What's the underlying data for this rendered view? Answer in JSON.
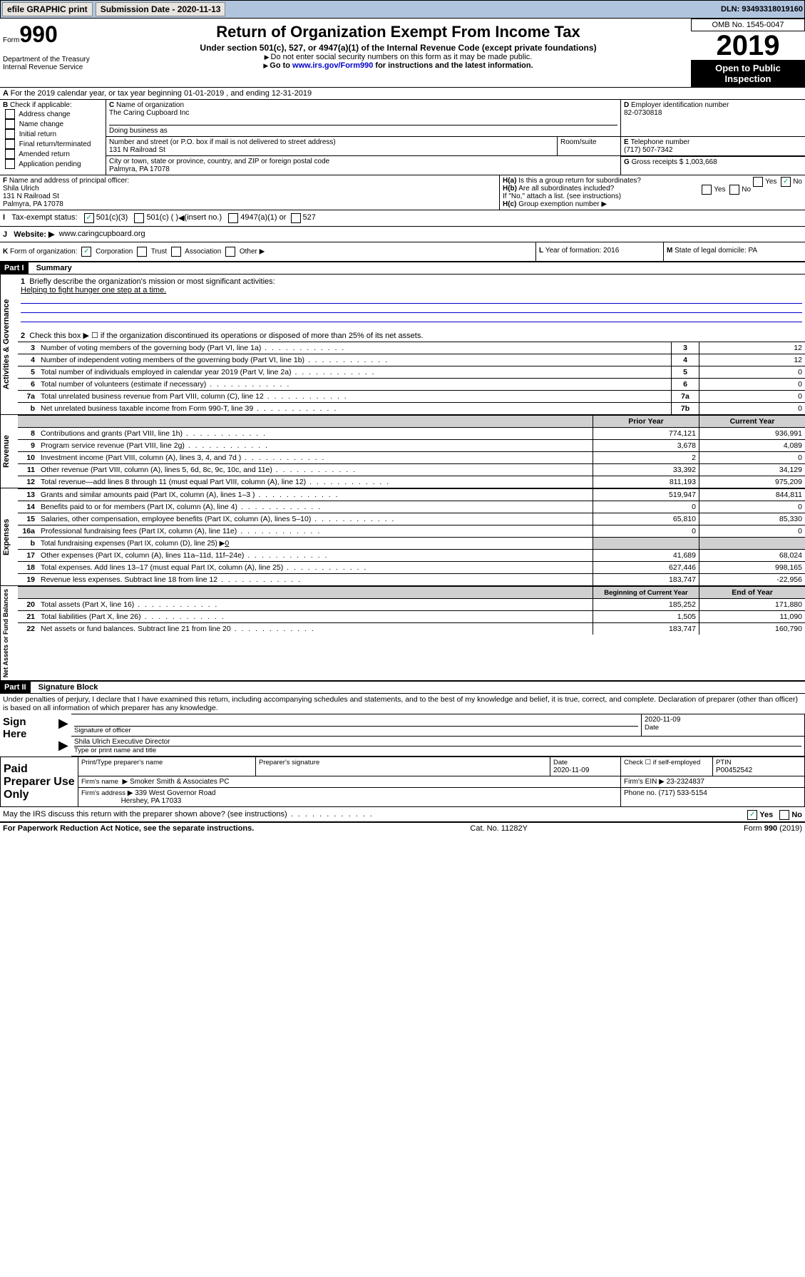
{
  "topbar": {
    "efile": "efile GRAPHIC print",
    "subdate_label": "Submission Date - 2020-11-13",
    "dln": "DLN: 93493318019160"
  },
  "hdr": {
    "form_word": "Form",
    "form_num": "990",
    "dept": "Department of the Treasury",
    "irs": "Internal Revenue Service",
    "title": "Return of Organization Exempt From Income Tax",
    "sub": "Under section 501(c), 527, or 4947(a)(1) of the Internal Revenue Code (except private foundations)",
    "note1": "Do not enter social security numbers on this form as it may be made public.",
    "note2_pre": "Go to ",
    "note2_link": "www.irs.gov/Form990",
    "note2_post": " for instructions and the latest information.",
    "omb": "OMB No. 1545-0047",
    "year": "2019",
    "inspect": "Open to Public Inspection"
  },
  "A": {
    "text": "For the 2019 calendar year, or tax year beginning 01-01-2019    , and ending 12-31-2019"
  },
  "B": {
    "label": "Check if applicable:",
    "opts": [
      "Address change",
      "Name change",
      "Initial return",
      "Final return/terminated",
      "Amended return",
      "Application pending"
    ]
  },
  "C": {
    "name_label": "Name of organization",
    "name": "The Caring Cupboard Inc",
    "dba_label": "Doing business as",
    "addr_label": "Number and street (or P.O. box if mail is not delivered to street address)",
    "room": "Room/suite",
    "addr": "131 N Railroad St",
    "city_label": "City or town, state or province, country, and ZIP or foreign postal code",
    "city": "Palmyra, PA  17078"
  },
  "D": {
    "label": "Employer identification number",
    "val": "82-0730818"
  },
  "E": {
    "label": "Telephone number",
    "val": "(717) 507-7342"
  },
  "G": {
    "label": "Gross receipts $ 1,003,668"
  },
  "F": {
    "label": "Name and address of principal officer:",
    "name": "Shila Ulrich",
    "addr1": "131 N Railroad St",
    "addr2": "Palmyra, PA  17078"
  },
  "H": {
    "a": "Is this a group return for subordinates?",
    "a_yes": "Yes",
    "a_no": "No",
    "b": "Are all subordinates included?",
    "c_note": "If \"No,\" attach a list. (see instructions)",
    "c": "Group exemption number"
  },
  "I": {
    "label": "Tax-exempt status:",
    "o1": "501(c)(3)",
    "o2": "501(c) (  )",
    "o2b": "(insert no.)",
    "o3": "4947(a)(1) or",
    "o4": "527"
  },
  "J": {
    "label": "Website:",
    "val": "www.caringcupboard.org"
  },
  "K": {
    "label": "Form of organization:",
    "o1": "Corporation",
    "o2": "Trust",
    "o3": "Association",
    "o4": "Other"
  },
  "L": {
    "label": "Year of formation: 2016"
  },
  "M": {
    "label": "State of legal domicile: PA"
  },
  "part1": {
    "hdr": "Part I",
    "title": "Summary"
  },
  "s1": {
    "q": "Briefly describe the organization's mission or most significant activities:",
    "a": "Helping to fight hunger one step at a time."
  },
  "s2": "Check this box ▶ ☐  if the organization discontinued its operations or disposed of more than 25% of its net assets.",
  "summary": [
    {
      "n": "3",
      "t": "Number of voting members of the governing body (Part VI, line 1a)",
      "b": "3",
      "v": "12"
    },
    {
      "n": "4",
      "t": "Number of independent voting members of the governing body (Part VI, line 1b)",
      "b": "4",
      "v": "12"
    },
    {
      "n": "5",
      "t": "Total number of individuals employed in calendar year 2019 (Part V, line 2a)",
      "b": "5",
      "v": "0"
    },
    {
      "n": "6",
      "t": "Total number of volunteers (estimate if necessary)",
      "b": "6",
      "v": "0"
    },
    {
      "n": "7a",
      "t": "Total unrelated business revenue from Part VIII, column (C), line 12",
      "b": "7a",
      "v": "0"
    },
    {
      "n": "b",
      "t": "Net unrelated business taxable income from Form 990-T, line 39",
      "b": "7b",
      "v": "0"
    }
  ],
  "cols": {
    "prior": "Prior Year",
    "curr": "Current Year",
    "beg": "Beginning of Current Year",
    "end": "End of Year"
  },
  "revenue": [
    {
      "n": "8",
      "t": "Contributions and grants (Part VIII, line 1h)",
      "p": "774,121",
      "c": "936,991"
    },
    {
      "n": "9",
      "t": "Program service revenue (Part VIII, line 2g)",
      "p": "3,678",
      "c": "4,089"
    },
    {
      "n": "10",
      "t": "Investment income (Part VIII, column (A), lines 3, 4, and 7d )",
      "p": "2",
      "c": "0"
    },
    {
      "n": "11",
      "t": "Other revenue (Part VIII, column (A), lines 5, 6d, 8c, 9c, 10c, and 11e)",
      "p": "33,392",
      "c": "34,129"
    },
    {
      "n": "12",
      "t": "Total revenue—add lines 8 through 11 (must equal Part VIII, column (A), line 12)",
      "p": "811,193",
      "c": "975,209"
    }
  ],
  "expenses": [
    {
      "n": "13",
      "t": "Grants and similar amounts paid (Part IX, column (A), lines 1–3 )",
      "p": "519,947",
      "c": "844,811"
    },
    {
      "n": "14",
      "t": "Benefits paid to or for members (Part IX, column (A), line 4)",
      "p": "0",
      "c": "0"
    },
    {
      "n": "15",
      "t": "Salaries, other compensation, employee benefits (Part IX, column (A), lines 5–10)",
      "p": "65,810",
      "c": "85,330"
    },
    {
      "n": "16a",
      "t": "Professional fundraising fees (Part IX, column (A), line 11e)",
      "p": "0",
      "c": "0"
    }
  ],
  "line16b": {
    "n": "b",
    "t": "Total fundraising expenses (Part IX, column (D), line 25) ▶",
    "v": "0"
  },
  "expenses2": [
    {
      "n": "17",
      "t": "Other expenses (Part IX, column (A), lines 11a–11d, 11f–24e)",
      "p": "41,689",
      "c": "68,024"
    },
    {
      "n": "18",
      "t": "Total expenses. Add lines 13–17 (must equal Part IX, column (A), line 25)",
      "p": "627,446",
      "c": "998,165"
    },
    {
      "n": "19",
      "t": "Revenue less expenses. Subtract line 18 from line 12",
      "p": "183,747",
      "c": "-22,956"
    }
  ],
  "netassets": [
    {
      "n": "20",
      "t": "Total assets (Part X, line 16)",
      "p": "185,252",
      "c": "171,880"
    },
    {
      "n": "21",
      "t": "Total liabilities (Part X, line 26)",
      "p": "1,505",
      "c": "11,090"
    },
    {
      "n": "22",
      "t": "Net assets or fund balances. Subtract line 21 from line 20",
      "p": "183,747",
      "c": "160,790"
    }
  ],
  "sections": {
    "ag": "Activities & Governance",
    "rev": "Revenue",
    "exp": "Expenses",
    "na": "Net Assets or Fund Balances"
  },
  "part2": {
    "hdr": "Part II",
    "title": "Signature Block"
  },
  "perjury": "Under penalties of perjury, I declare that I have examined this return, including accompanying schedules and statements, and to the best of my knowledge and belief, it is true, correct, and complete. Declaration of preparer (other than officer) is based on all information of which preparer has any knowledge.",
  "sign": {
    "here": "Sign Here",
    "sigoff": "Signature of officer",
    "date": "Date",
    "dateval": "2020-11-09",
    "typed": "Shila Ulrich  Executive Director",
    "typedlbl": "Type or print name and title"
  },
  "paid": {
    "hdr": "Paid Preparer Use Only",
    "pn": "Print/Type preparer's name",
    "ps": "Preparer's signature",
    "d": "Date",
    "dv": "2020-11-09",
    "chk": "Check ☐ if self-employed",
    "ptin": "PTIN",
    "ptinv": "P00452542",
    "fn": "Firm's name",
    "fnv": "Smoker Smith & Associates PC",
    "fein": "Firm's EIN ▶ 23-2324837",
    "fa": "Firm's address",
    "fav": "339 West Governor Road",
    "fac": "Hershey, PA  17033",
    "ph": "Phone no. (717) 533-5154"
  },
  "discuss": "May the IRS discuss this return with the preparer shown above? (see instructions)",
  "footer": {
    "pra": "For Paperwork Reduction Act Notice, see the separate instructions.",
    "cat": "Cat. No. 11282Y",
    "form": "Form 990 (2019)"
  }
}
